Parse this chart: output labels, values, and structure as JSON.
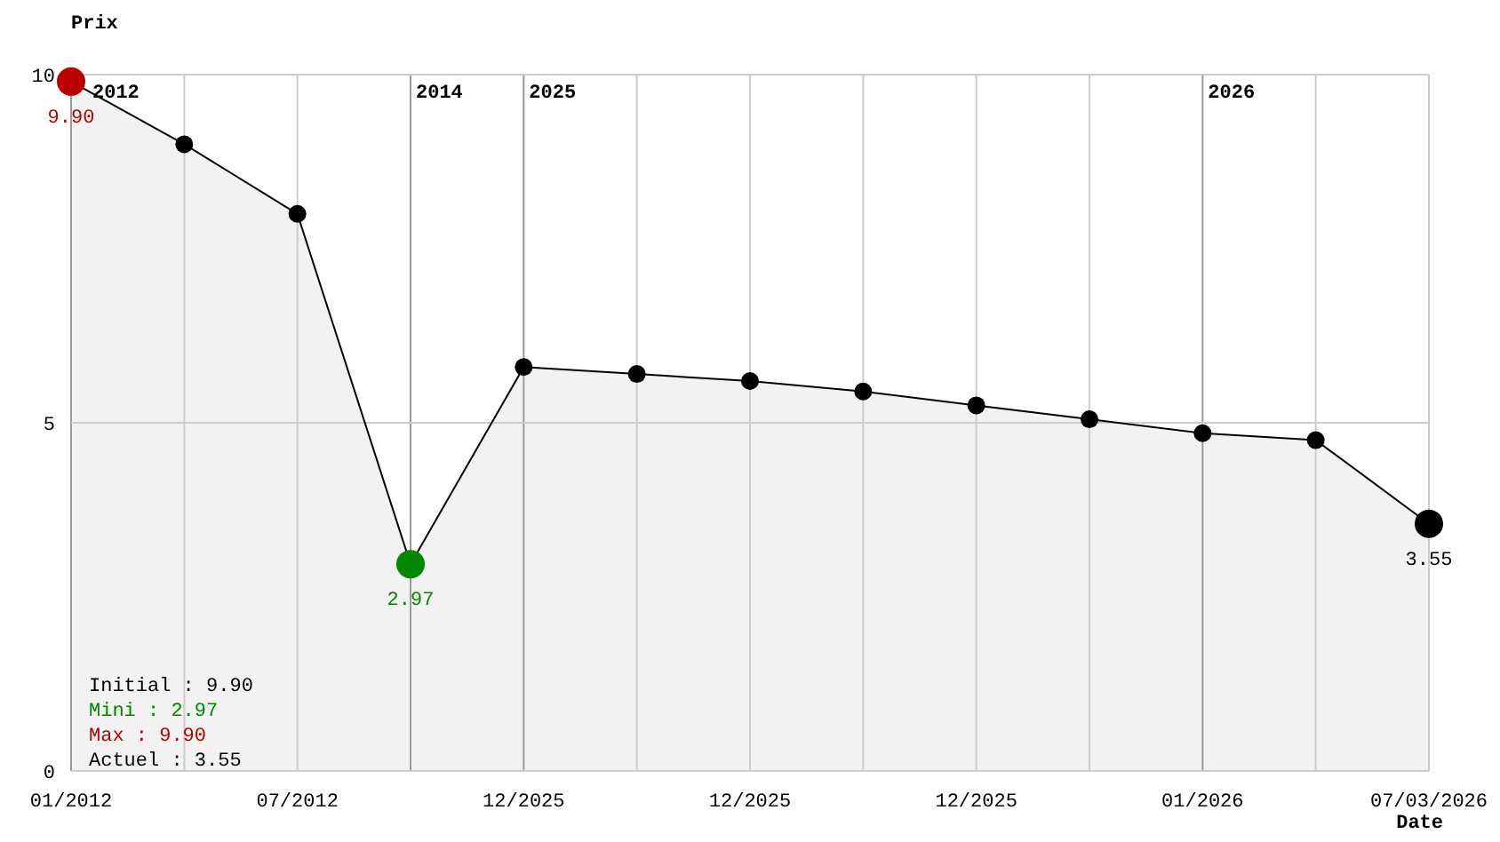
{
  "chart_data": {
    "type": "area",
    "ylabel": "Prix",
    "xlabel": "Date",
    "categories": [
      "01/2012",
      null,
      "07/2012",
      null,
      "12/2025",
      null,
      "12/2025",
      null,
      "12/2025",
      null,
      "01/2026",
      null,
      "07/03/2026"
    ],
    "ylim": [
      0,
      10
    ],
    "yticks": [
      0,
      5,
      10
    ],
    "grid": true,
    "marker": "circle",
    "series": [
      {
        "color": "#000000",
        "values": [
          9.9,
          9.0,
          8.0,
          2.97,
          5.8,
          5.7,
          5.6,
          5.45,
          5.25,
          5.05,
          4.85,
          4.75,
          3.55
        ],
        "colors": [
          "#bb0000",
          "#000000",
          "#000000",
          "#008800",
          "#000000",
          "#000000",
          "#000000",
          "#000000",
          "#000000",
          "#000000",
          "#000000",
          "#000000",
          "#000000"
        ],
        "value_labels": [
          "9.90",
          null,
          null,
          "2.97",
          null,
          null,
          null,
          null,
          null,
          null,
          null,
          null,
          "3.55"
        ]
      }
    ],
    "annotations": [
      "2012",
      "2014",
      "2025",
      "2026",
      "Initial : 9.90",
      "Mini : 2.97",
      "Max : 9.90",
      "Actuel : 3.55"
    ]
  }
}
